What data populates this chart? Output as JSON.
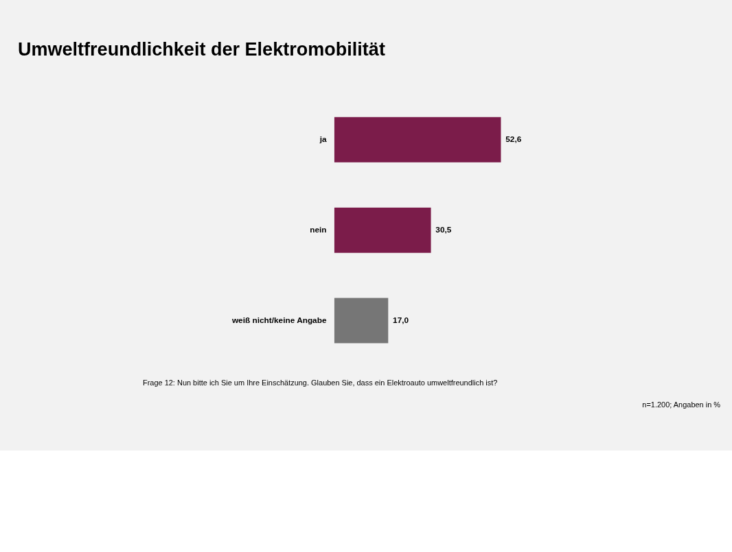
{
  "chart_data": {
    "type": "bar",
    "orientation": "horizontal",
    "title": "Umweltfreundlichkeit der Elektromobilität",
    "categories": [
      "ja",
      "nein",
      "weiß nicht/keine Angabe"
    ],
    "values": [
      52.6,
      30.5,
      17.0
    ],
    "colors": [
      "#7b1c4a",
      "#7b1c4a",
      "#767676"
    ],
    "value_labels": [
      "52,6",
      "30,5",
      "17,0"
    ],
    "grid": false,
    "tick_labels": "y",
    "annotations": [
      "Frage 12:  Nun bitte ich Sie um Ihre Einschätzung. Glauben Sie, dass ein Elektroauto umweltfreundlich ist?",
      "n=1.200;  Angaben in %"
    ]
  }
}
